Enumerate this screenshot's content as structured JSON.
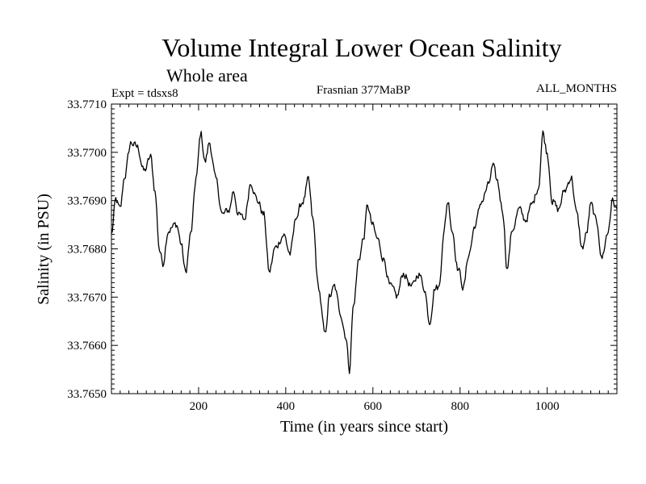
{
  "chart_data": {
    "type": "line",
    "title": "Volume Integral Lower Ocean Salinity",
    "subtitle": "Whole area",
    "annotations": {
      "left": "Expt = tdsxs8",
      "center": "Frasnian 377MaBP",
      "right": "ALL_MONTHS"
    },
    "xlabel": "Time (in years since start)",
    "ylabel": "Salinity (in PSU)",
    "xlim": [
      0,
      1160
    ],
    "ylim": [
      33.765,
      33.771
    ],
    "xticks": [
      200,
      400,
      600,
      800,
      1000
    ],
    "xtick_labels": [
      "200",
      "400",
      "600",
      "800",
      "1000"
    ],
    "yticks": [
      33.765,
      33.766,
      33.767,
      33.768,
      33.769,
      33.77,
      33.771
    ],
    "ytick_labels": [
      "33.7650",
      "33.7660",
      "33.7670",
      "33.7680",
      "33.7690",
      "33.7700",
      "33.7710"
    ],
    "grid": false,
    "series": [
      {
        "name": "Salinity",
        "color": "#000000",
        "keypoints": [
          [
            0,
            33.7683
          ],
          [
            10,
            33.769
          ],
          [
            20,
            33.7688
          ],
          [
            30,
            33.7695
          ],
          [
            45,
            33.7702
          ],
          [
            60,
            33.7701
          ],
          [
            75,
            33.7696
          ],
          [
            90,
            33.7699
          ],
          [
            100,
            33.7692
          ],
          [
            110,
            33.768
          ],
          [
            118,
            33.7677
          ],
          [
            130,
            33.7684
          ],
          [
            150,
            33.7685
          ],
          [
            160,
            33.7681
          ],
          [
            170,
            33.7675
          ],
          [
            182,
            33.7683
          ],
          [
            195,
            33.7695
          ],
          [
            205,
            33.7704
          ],
          [
            215,
            33.7698
          ],
          [
            225,
            33.7702
          ],
          [
            240,
            33.7694
          ],
          [
            255,
            33.7687
          ],
          [
            270,
            33.7688
          ],
          [
            280,
            33.7692
          ],
          [
            292,
            33.7687
          ],
          [
            305,
            33.7686
          ],
          [
            320,
            33.7694
          ],
          [
            335,
            33.769
          ],
          [
            350,
            33.7687
          ],
          [
            362,
            33.7675
          ],
          [
            375,
            33.768
          ],
          [
            395,
            33.7683
          ],
          [
            410,
            33.7679
          ],
          [
            425,
            33.7687
          ],
          [
            440,
            33.769
          ],
          [
            452,
            33.7694
          ],
          [
            462,
            33.7686
          ],
          [
            475,
            33.7672
          ],
          [
            490,
            33.7662
          ],
          [
            500,
            33.767
          ],
          [
            512,
            33.7672
          ],
          [
            525,
            33.7667
          ],
          [
            538,
            33.7662
          ],
          [
            546,
            33.7655
          ],
          [
            555,
            33.7668
          ],
          [
            568,
            33.7678
          ],
          [
            578,
            33.7682
          ],
          [
            588,
            33.7689
          ],
          [
            598,
            33.7685
          ],
          [
            610,
            33.7682
          ],
          [
            625,
            33.7678
          ],
          [
            640,
            33.7672
          ],
          [
            655,
            33.767
          ],
          [
            670,
            33.7675
          ],
          [
            690,
            33.7672
          ],
          [
            705,
            33.7675
          ],
          [
            718,
            33.7672
          ],
          [
            730,
            33.7665
          ],
          [
            742,
            33.7672
          ],
          [
            752,
            33.7672
          ],
          [
            762,
            33.7683
          ],
          [
            772,
            33.769
          ],
          [
            782,
            33.7684
          ],
          [
            795,
            33.7676
          ],
          [
            808,
            33.7672
          ],
          [
            820,
            33.7679
          ],
          [
            835,
            33.7685
          ],
          [
            850,
            33.769
          ],
          [
            865,
            33.7693
          ],
          [
            875,
            33.7697
          ],
          [
            885,
            33.7694
          ],
          [
            898,
            33.7688
          ],
          [
            908,
            33.7676
          ],
          [
            920,
            33.7684
          ],
          [
            935,
            33.7688
          ],
          [
            950,
            33.7686
          ],
          [
            965,
            33.7689
          ],
          [
            980,
            33.7693
          ],
          [
            990,
            33.7704
          ],
          [
            1000,
            33.77
          ],
          [
            1012,
            33.769
          ],
          [
            1025,
            33.7688
          ],
          [
            1040,
            33.7692
          ],
          [
            1055,
            33.7695
          ],
          [
            1068,
            33.7687
          ],
          [
            1080,
            33.768
          ],
          [
            1090,
            33.7683
          ],
          [
            1100,
            33.7689
          ],
          [
            1115,
            33.7685
          ],
          [
            1125,
            33.7678
          ],
          [
            1138,
            33.7683
          ],
          [
            1150,
            33.769
          ],
          [
            1160,
            33.7688
          ]
        ]
      }
    ]
  }
}
